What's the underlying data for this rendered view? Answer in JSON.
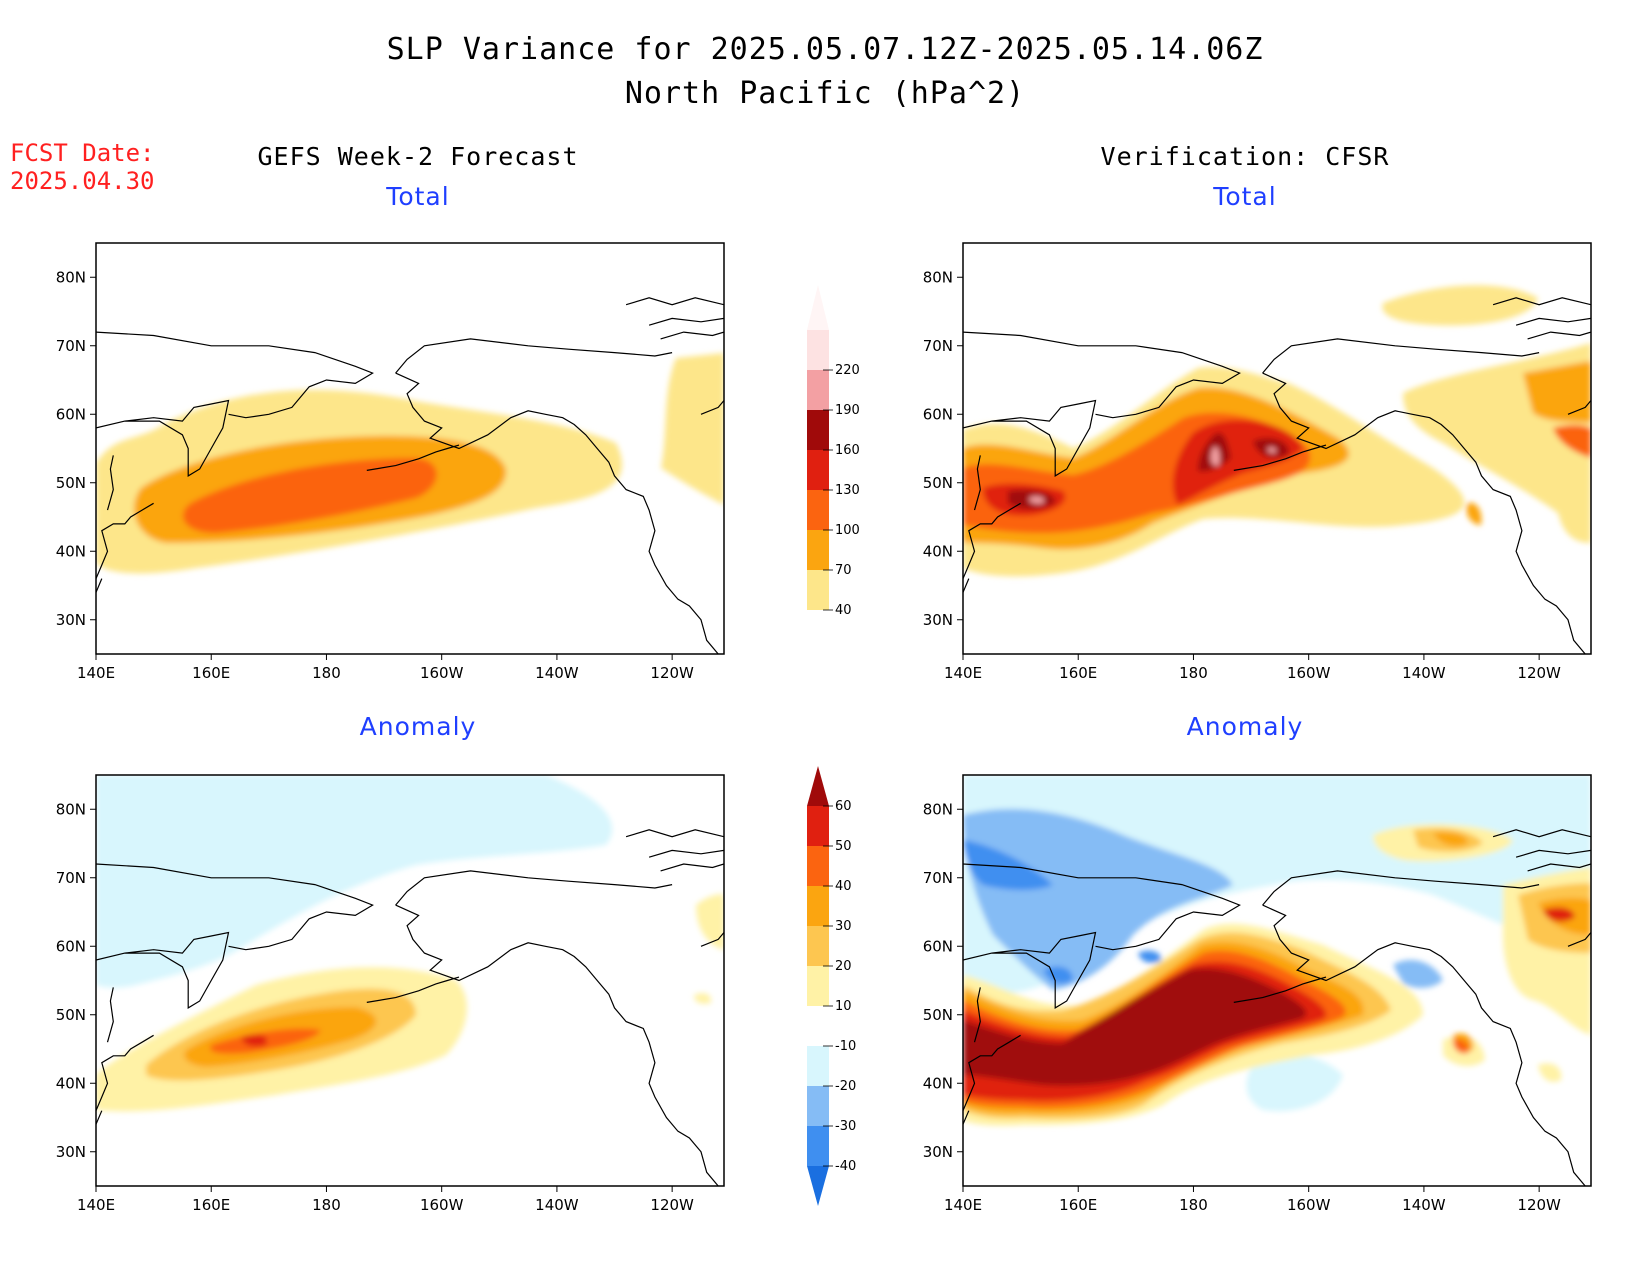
{
  "header": {
    "title": "SLP Variance for 2025.05.07.12Z-2025.05.14.06Z",
    "subtitle": "North Pacific (hPa^2)",
    "fcst_label": "FCST Date:",
    "fcst_date": "2025.04.30",
    "left_column": "GEFS Week-2 Forecast",
    "right_column": "Verification: CFSR"
  },
  "panels": {
    "top_left": {
      "title": "Total"
    },
    "top_right": {
      "title": "Total"
    },
    "bottom_left": {
      "title": "Anomaly"
    },
    "bottom_right": {
      "title": "Anomaly"
    }
  },
  "axes": {
    "lat_labels": [
      "80N",
      "70N",
      "60N",
      "50N",
      "40N",
      "30N"
    ],
    "lat_values": [
      80,
      70,
      60,
      50,
      40,
      30
    ],
    "lon_labels": [
      "140E",
      "160E",
      "180",
      "160W",
      "140W",
      "120W"
    ],
    "lon_values": [
      140,
      160,
      180,
      200,
      220,
      240
    ],
    "lon_range": [
      140,
      249
    ],
    "lat_range": [
      25,
      85
    ]
  },
  "colorbars": {
    "total": {
      "levels": [
        "40",
        "70",
        "100",
        "130",
        "160",
        "190",
        "220"
      ],
      "colors": [
        "#fde68a",
        "#fba510",
        "#fb6410",
        "#e02010",
        "#a00a0a",
        "#f3a0a3",
        "#fde2e2"
      ]
    },
    "anomaly": {
      "levels": [
        "-40",
        "-30",
        "-20",
        "-10",
        "10",
        "20",
        "30",
        "40",
        "50",
        "60"
      ],
      "colors": [
        "#1a6fe0",
        "#3f8ff0",
        "#85bcf5",
        "#d8f6fd",
        "#ffffff",
        "#fff2a6",
        "#fdc650",
        "#fba510",
        "#fb6410",
        "#e02010",
        "#a00a0a"
      ]
    }
  },
  "colors": {
    "title_text": "#000000",
    "fcst_text": "#ff2020",
    "panel_title": "#1f3fff"
  }
}
